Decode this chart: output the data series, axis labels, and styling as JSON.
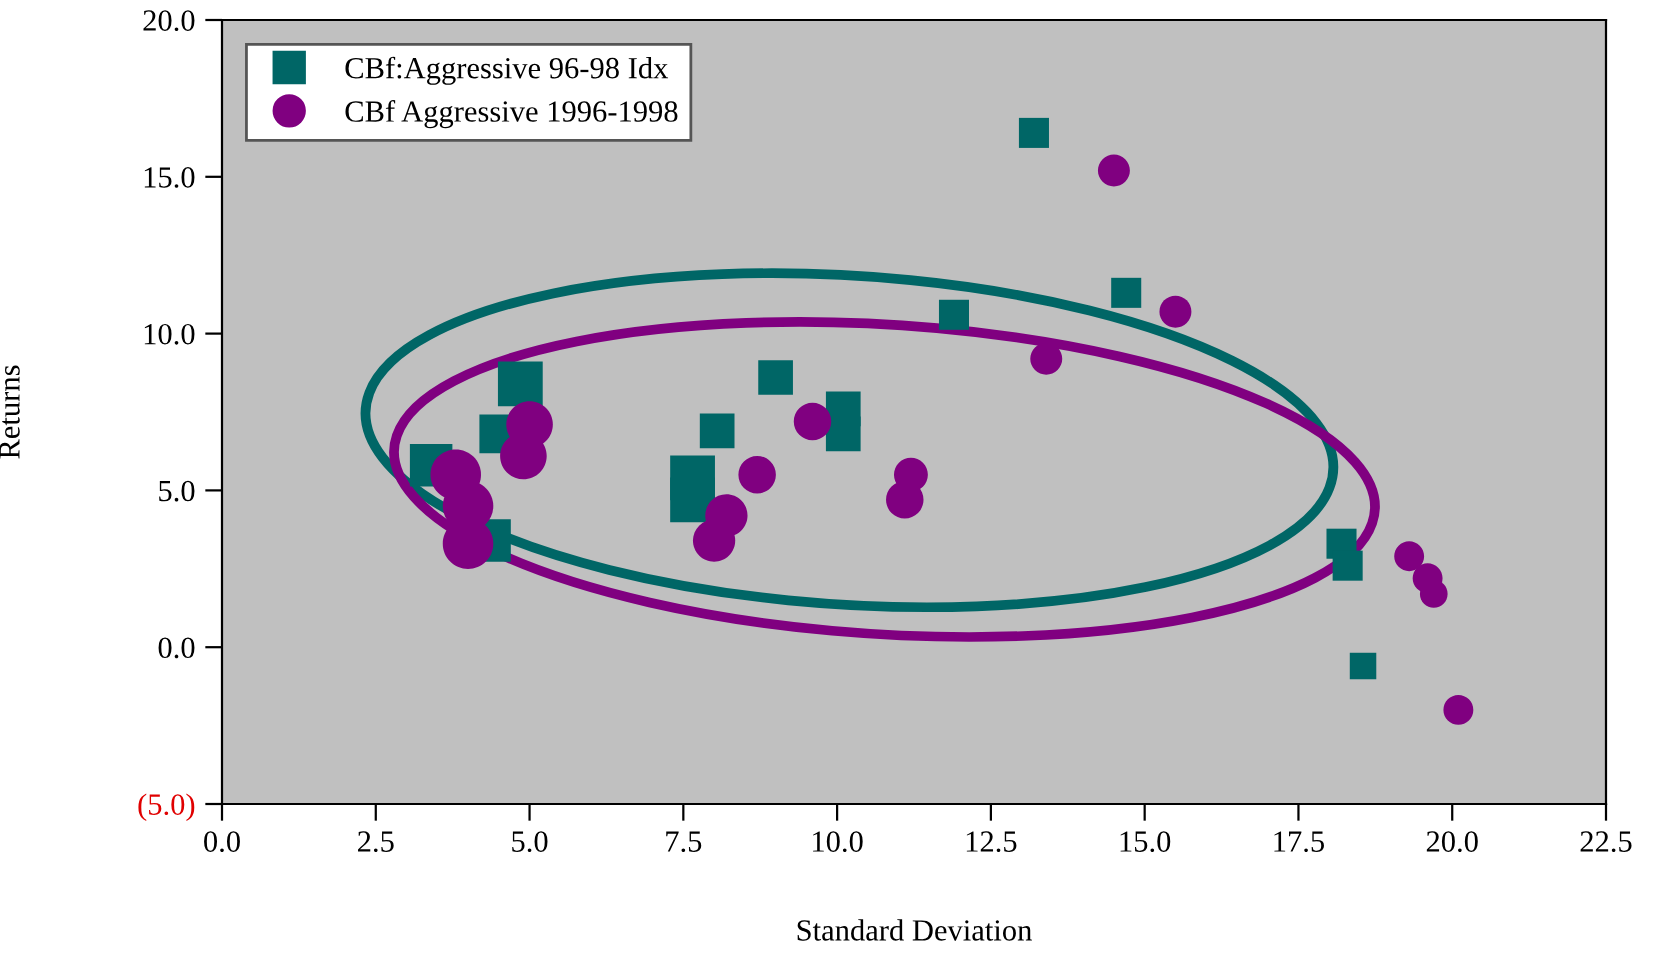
{
  "chart_data": {
    "type": "bubble",
    "xlabel": "Standard Deviation",
    "ylabel": "Returns",
    "xlim": [
      0,
      22.5
    ],
    "ylim": [
      -5,
      20
    ],
    "xticks": [
      {
        "value": 0,
        "label": "0.0"
      },
      {
        "value": 2.5,
        "label": "2.5"
      },
      {
        "value": 5,
        "label": "5.0"
      },
      {
        "value": 7.5,
        "label": "7.5"
      },
      {
        "value": 10,
        "label": "10.0"
      },
      {
        "value": 12.5,
        "label": "12.5"
      },
      {
        "value": 15,
        "label": "15.0"
      },
      {
        "value": 17.5,
        "label": "17.5"
      },
      {
        "value": 20,
        "label": "20.0"
      },
      {
        "value": 22.5,
        "label": "22.5"
      }
    ],
    "yticks": [
      {
        "value": -5,
        "label": "(5.0)"
      },
      {
        "value": 0,
        "label": "0.0"
      },
      {
        "value": 5,
        "label": "5.0"
      },
      {
        "value": 10,
        "label": "10.0"
      },
      {
        "value": 15,
        "label": "15.0"
      },
      {
        "value": 20,
        "label": "20.0"
      }
    ],
    "grid": false,
    "legend": "top left",
    "series": [
      {
        "name": "CBf:Aggressive 96-98 Idx",
        "marker": "square",
        "color": "#006666",
        "x": [
          13.2,
          11.9,
          14.7,
          4.85,
          9.0,
          10.1,
          10.1,
          8.05,
          4.5,
          7.65,
          7.65,
          3.4,
          4.35,
          18.2,
          18.3,
          18.55
        ],
        "values": [
          16.4,
          10.6,
          11.3,
          8.4,
          8.6,
          7.6,
          6.8,
          6.9,
          6.8,
          5.4,
          4.7,
          5.8,
          3.4,
          3.3,
          2.6,
          -0.6
        ],
        "sizes": [
          0.45,
          0.45,
          0.45,
          1,
          0.6,
          0.6,
          0.6,
          0.6,
          0.75,
          1,
          1,
          0.9,
          0.9,
          0.45,
          0.45,
          0.35
        ]
      },
      {
        "name": "CBf Aggressive 1996-1998",
        "marker": "circle",
        "color": "#800080",
        "x": [
          14.5,
          15.5,
          13.4,
          11.1,
          11.2,
          9.6,
          8.7,
          8.2,
          8.0,
          5.0,
          4.9,
          3.8,
          4.0,
          4.0,
          19.3,
          19.6,
          19.7,
          20.1
        ],
        "values": [
          15.2,
          10.7,
          9.2,
          4.7,
          5.5,
          7.2,
          5.5,
          4.2,
          3.4,
          7.1,
          6.1,
          5.5,
          4.5,
          3.3,
          2.9,
          2.2,
          1.7,
          -2.0
        ],
        "sizes": [
          0.4,
          0.4,
          0.4,
          0.55,
          0.45,
          0.55,
          0.55,
          0.7,
          0.7,
          0.85,
          0.85,
          1,
          1,
          1,
          0.35,
          0.35,
          0.3,
          0.35
        ]
      }
    ]
  }
}
